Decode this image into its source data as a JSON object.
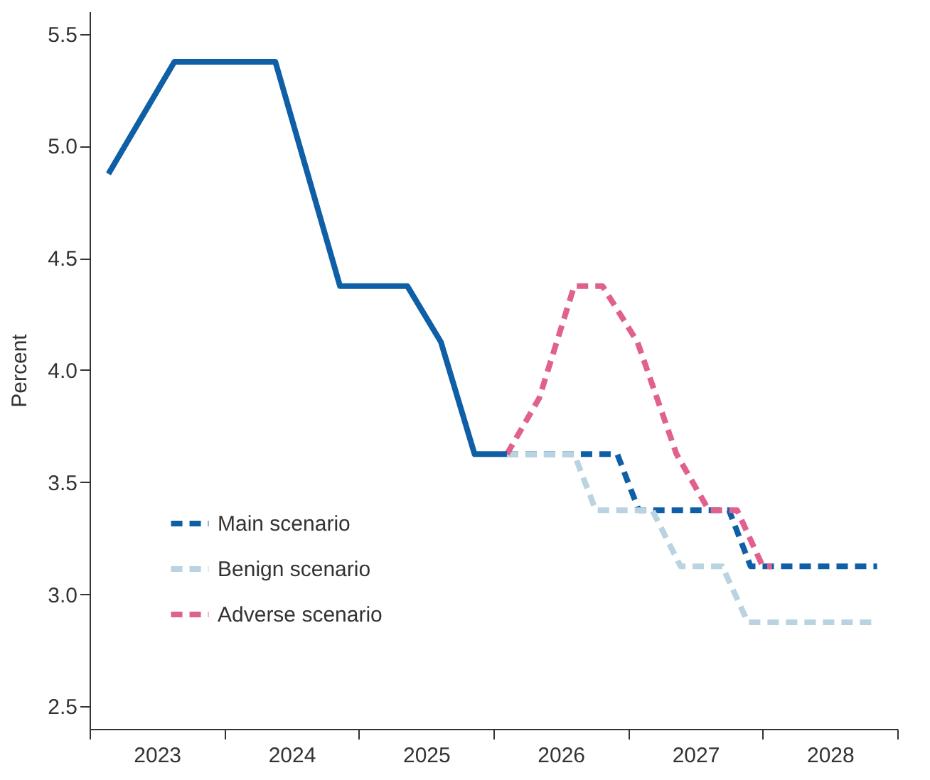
{
  "chart_data": {
    "type": "line",
    "ylabel": "Percent",
    "xlim": [
      2023,
      2029
    ],
    "xticks": [
      {
        "value": 2023,
        "label": null
      },
      {
        "value": 2023.5,
        "label": "2023"
      },
      {
        "value": 2024,
        "label": null
      },
      {
        "value": 2024.5,
        "label": "2024"
      },
      {
        "value": 2025,
        "label": null
      },
      {
        "value": 2025.5,
        "label": "2025"
      },
      {
        "value": 2026,
        "label": null
      },
      {
        "value": 2026.5,
        "label": "2026"
      },
      {
        "value": 2027,
        "label": null
      },
      {
        "value": 2027.5,
        "label": "2027"
      },
      {
        "value": 2028,
        "label": null
      },
      {
        "value": 2028.5,
        "label": "2028"
      },
      {
        "value": 2029,
        "label": null
      }
    ],
    "ylim": [
      2.4,
      5.6
    ],
    "yticks": [
      {
        "value": 2.5,
        "label": "2.5"
      },
      {
        "value": 3.0,
        "label": "3.0"
      },
      {
        "value": 3.5,
        "label": "3.5"
      },
      {
        "value": 4.0,
        "label": "4.0"
      },
      {
        "value": 4.5,
        "label": "4.5"
      },
      {
        "value": 5.0,
        "label": "5.0"
      },
      {
        "value": 5.5,
        "label": "5.5"
      }
    ],
    "grid": false,
    "legend": "bottom left",
    "marker": "none",
    "series": [
      {
        "color": "#0f5fa6",
        "line_style": "dashed",
        "name": "Main scenario",
        "x": [
          2026.1,
          2026.92,
          2027.08,
          2027.75,
          2027.91,
          2028.85
        ],
        "values": [
          3.625,
          3.625,
          3.375,
          3.375,
          3.125,
          3.125
        ]
      },
      {
        "color": "#b9d3e0",
        "line_style": "dashed",
        "name": "Benign scenario",
        "x": [
          2026.1,
          2026.6,
          2026.76,
          2027.18,
          2027.39,
          2027.7,
          2027.89,
          2028.85
        ],
        "values": [
          3.625,
          3.625,
          3.375,
          3.375,
          3.125,
          3.125,
          2.875,
          2.875
        ]
      },
      {
        "color": "#e0608f",
        "line_style": "dashed",
        "name": "Adverse scenario",
        "x": [
          2026.1,
          2026.34,
          2026.6,
          2026.81,
          2027.07,
          2027.36,
          2027.6,
          2027.81,
          2028.0,
          2028.07
        ],
        "values": [
          3.625,
          3.875,
          4.375,
          4.375,
          4.125,
          3.625,
          3.375,
          3.375,
          3.125,
          3.125
        ]
      },
      {
        "color": "#0f5fa6",
        "line_style": "solid",
        "x": [
          2023.14,
          2023.63,
          2024.38,
          2024.86,
          2025.36,
          2025.61,
          2025.86,
          2026.1
        ],
        "values": [
          4.875,
          5.375,
          5.375,
          4.375,
          4.375,
          4.125,
          3.625,
          3.625
        ]
      }
    ]
  }
}
